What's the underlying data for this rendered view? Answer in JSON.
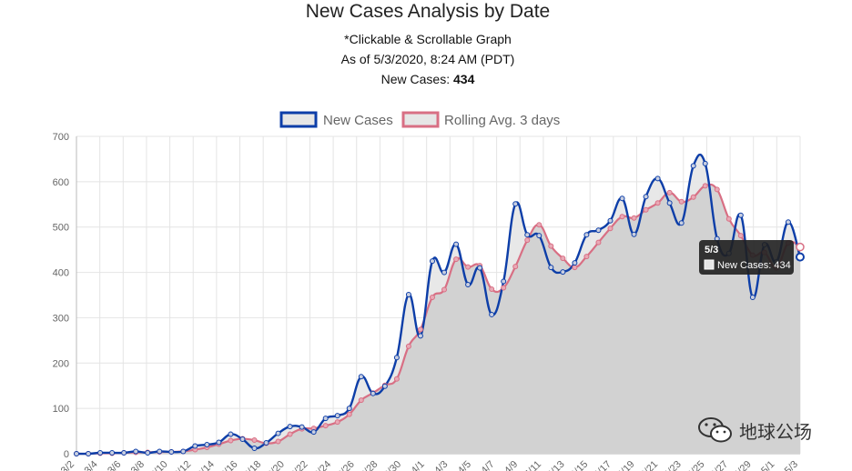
{
  "header": {
    "title": "New Cases Analysis by Date",
    "note": "*Clickable & Scrollable Graph",
    "as_of": "As of 5/3/2020, 8:24 AM (PDT)",
    "new_cases_label": "New Cases: ",
    "new_cases_value": "434"
  },
  "watermark": {
    "text": "地球公场"
  },
  "colors": {
    "new_cases_line": "#0d3ea8",
    "new_cases_fill": "#e6e6e6",
    "rolling_line": "#d86f84",
    "rolling_fill": "#cfcfcf",
    "grid": "#e4e4e4",
    "tooltip_bg": "#1f1f1f"
  },
  "chart_data": {
    "type": "line",
    "title": "New Cases Analysis by Date",
    "ylim": [
      0,
      700
    ],
    "yticks": [
      "0",
      "100",
      "200",
      "300",
      "400",
      "500",
      "600",
      "700"
    ],
    "xtick_labels": [
      "3/2",
      "3/4",
      "3/6",
      "3/8",
      "3/10",
      "3/12",
      "3/14",
      "3/16",
      "3/18",
      "3/20",
      "3/22",
      "3/24",
      "3/26",
      "3/28",
      "3/30",
      "4/1",
      "4/3",
      "4/5",
      "4/7",
      "4/9",
      "4/11",
      "4/13",
      "4/15",
      "4/17",
      "4/19",
      "4/21",
      "4/23",
      "4/25",
      "4/27",
      "4/29",
      "5/1",
      "5/3"
    ],
    "x_start": "3/2",
    "x_end": "5/3",
    "legend": [
      "New Cases",
      "Rolling Avg. 3 days"
    ],
    "legend_position": "top",
    "series": [
      {
        "name": "New Cases",
        "values": [
          0,
          0,
          2,
          2,
          2,
          5,
          2,
          5,
          4,
          5,
          17,
          20,
          25,
          43,
          32,
          12,
          24,
          45,
          60,
          59,
          48,
          78,
          84,
          100,
          170,
          133,
          149,
          212,
          351,
          260,
          425,
          400,
          462,
          373,
          410,
          307,
          380,
          551,
          483,
          481,
          411,
          401,
          421,
          483,
          493,
          514,
          563,
          484,
          567,
          607,
          553,
          509,
          635,
          640,
          474,
          442,
          526,
          345,
          461,
          423,
          511,
          434
        ]
      },
      {
        "name": "Rolling Avg. 3 days",
        "values": [
          0,
          0,
          1,
          1,
          2,
          3,
          3,
          4,
          4,
          5,
          9,
          14,
          21,
          29,
          33,
          30,
          23,
          27,
          43,
          55,
          56,
          62,
          70,
          87,
          118,
          134,
          151,
          165,
          237,
          274,
          345,
          362,
          429,
          412,
          415,
          363,
          366,
          413,
          471,
          505,
          458,
          431,
          411,
          435,
          466,
          497,
          523,
          520,
          538,
          553,
          576,
          556,
          566,
          591,
          583,
          518,
          481,
          438,
          444,
          410,
          465,
          456
        ]
      }
    ],
    "tooltip": {
      "title": "5/3",
      "label": "New Cases: 434"
    }
  }
}
